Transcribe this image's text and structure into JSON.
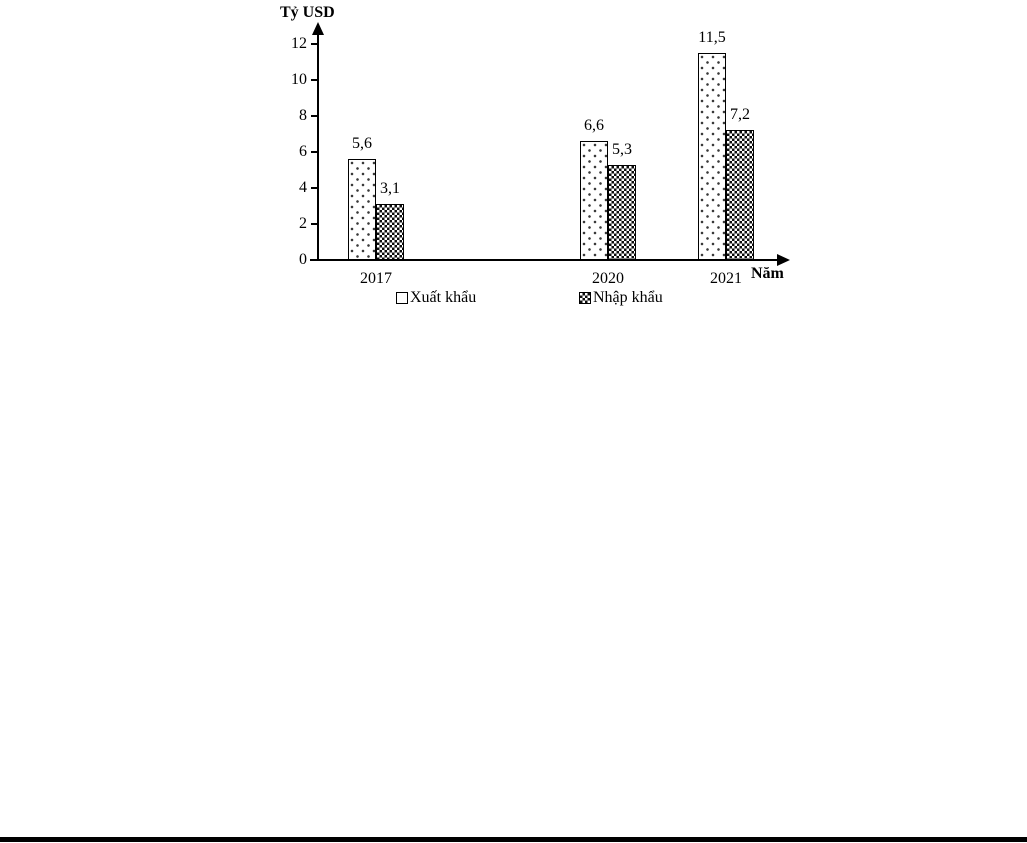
{
  "chart_data": {
    "type": "bar",
    "title": "",
    "ylabel": "Tỷ USD",
    "xlabel": "Năm",
    "categories": [
      "2017",
      "2020",
      "2021"
    ],
    "series": [
      {
        "name": "Xuất khẩu",
        "values": [
          5.6,
          6.6,
          11.5
        ],
        "labels": [
          "5,6",
          "6,6",
          "11,5"
        ],
        "pattern": "dots"
      },
      {
        "name": "Nhập khẩu",
        "values": [
          3.1,
          5.3,
          7.2
        ],
        "labels": [
          "3,1",
          "5,3",
          "7,2"
        ],
        "pattern": "checker"
      }
    ],
    "y_ticks": [
      0,
      2,
      4,
      6,
      8,
      10,
      12
    ],
    "ylim": [
      0,
      12
    ],
    "grid": false,
    "legend_position": "bottom",
    "decimal_separator": ",",
    "colors": {
      "background": "#ffffff",
      "axis": "#000000",
      "text": "#000000",
      "bar_border": "#000000"
    }
  }
}
